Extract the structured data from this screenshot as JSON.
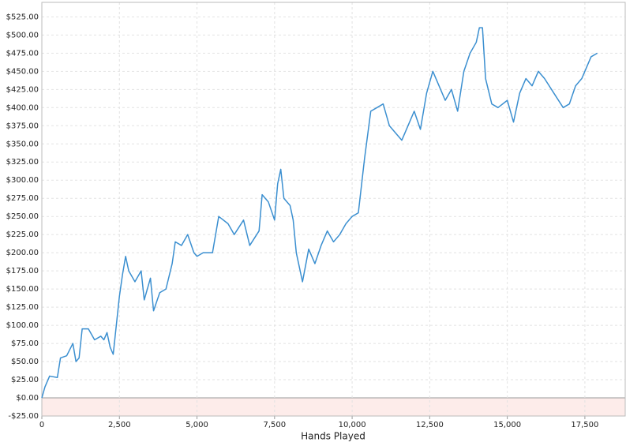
{
  "chart_data": {
    "type": "line",
    "x_label": "Hands Played",
    "xlim": [
      0,
      18800
    ],
    "ylim": [
      -25,
      545
    ],
    "grid": true,
    "xticks": [
      0,
      {
        "value": 2500,
        "label": "2,500"
      },
      {
        "value": 5000,
        "label": "5,000"
      },
      {
        "value": 7500,
        "label": "7,500"
      },
      {
        "value": 10000,
        "label": "10,000"
      },
      {
        "value": 12500,
        "label": "12,500"
      },
      {
        "value": 15000,
        "label": "15,000"
      },
      {
        "value": 17500,
        "label": "17,500"
      }
    ],
    "yticks": [
      {
        "value": -25,
        "label": "-$25.00"
      },
      {
        "value": 0,
        "label": "$0.00"
      },
      {
        "value": 25,
        "label": "$25.00"
      },
      {
        "value": 50,
        "label": "$50.00"
      },
      {
        "value": 75,
        "label": "$75.00"
      },
      {
        "value": 100,
        "label": "$100.00"
      },
      {
        "value": 125,
        "label": "$125.00"
      },
      {
        "value": 150,
        "label": "$150.00"
      },
      {
        "value": 175,
        "label": "$175.00"
      },
      {
        "value": 200,
        "label": "$200.00"
      },
      {
        "value": 225,
        "label": "$225.00"
      },
      {
        "value": 250,
        "label": "$250.00"
      },
      {
        "value": 275,
        "label": "$275.00"
      },
      {
        "value": 300,
        "label": "$300.00"
      },
      {
        "value": 325,
        "label": "$325.00"
      },
      {
        "value": 350,
        "label": "$350.00"
      },
      {
        "value": 375,
        "label": "$375.00"
      },
      {
        "value": 400,
        "label": "$400.00"
      },
      {
        "value": 425,
        "label": "$425.00"
      },
      {
        "value": 450,
        "label": "$450.00"
      },
      {
        "value": 475,
        "label": "$475.00"
      },
      {
        "value": 500,
        "label": "$500.00"
      },
      {
        "value": 525,
        "label": "$525.00"
      }
    ],
    "series": [
      {
        "color": "#3b8fd0",
        "x": [
          0,
          100,
          250,
          500,
          600,
          800,
          1000,
          1100,
          1200,
          1300,
          1500,
          1700,
          1900,
          2000,
          2100,
          2200,
          2300,
          2400,
          2500,
          2600,
          2700,
          2800,
          3000,
          3200,
          3300,
          3500,
          3600,
          3800,
          4000,
          4200,
          4300,
          4500,
          4700,
          4900,
          5000,
          5200,
          5500,
          5700,
          6000,
          6200,
          6500,
          6700,
          7000,
          7100,
          7300,
          7500,
          7600,
          7700,
          7800,
          8000,
          8100,
          8200,
          8400,
          8600,
          8800,
          9000,
          9200,
          9400,
          9600,
          9800,
          10000,
          10200,
          10400,
          10600,
          10800,
          11000,
          11200,
          11400,
          11600,
          11800,
          12000,
          12200,
          12400,
          12600,
          12800,
          13000,
          13200,
          13400,
          13600,
          13800,
          14000,
          14100,
          14200,
          14300,
          14500,
          14700,
          15000,
          15200,
          15400,
          15600,
          15800,
          16000,
          16200,
          16500,
          16800,
          17000,
          17200,
          17400,
          17700,
          17900
        ],
        "values": [
          0,
          15,
          30,
          28,
          55,
          58,
          75,
          50,
          55,
          95,
          95,
          80,
          85,
          80,
          90,
          70,
          60,
          100,
          140,
          170,
          195,
          175,
          160,
          175,
          135,
          165,
          120,
          145,
          150,
          185,
          215,
          210,
          225,
          200,
          195,
          200,
          200,
          250,
          240,
          225,
          245,
          210,
          230,
          280,
          270,
          245,
          295,
          315,
          275,
          265,
          245,
          200,
          160,
          205,
          185,
          210,
          230,
          215,
          225,
          240,
          250,
          255,
          330,
          395,
          400,
          405,
          375,
          365,
          355,
          375,
          395,
          370,
          420,
          450,
          430,
          410,
          425,
          395,
          450,
          475,
          490,
          510,
          510,
          440,
          405,
          400,
          410,
          380,
          420,
          440,
          430,
          450,
          440,
          420,
          400,
          405,
          430,
          440,
          470,
          475
        ]
      }
    ]
  }
}
